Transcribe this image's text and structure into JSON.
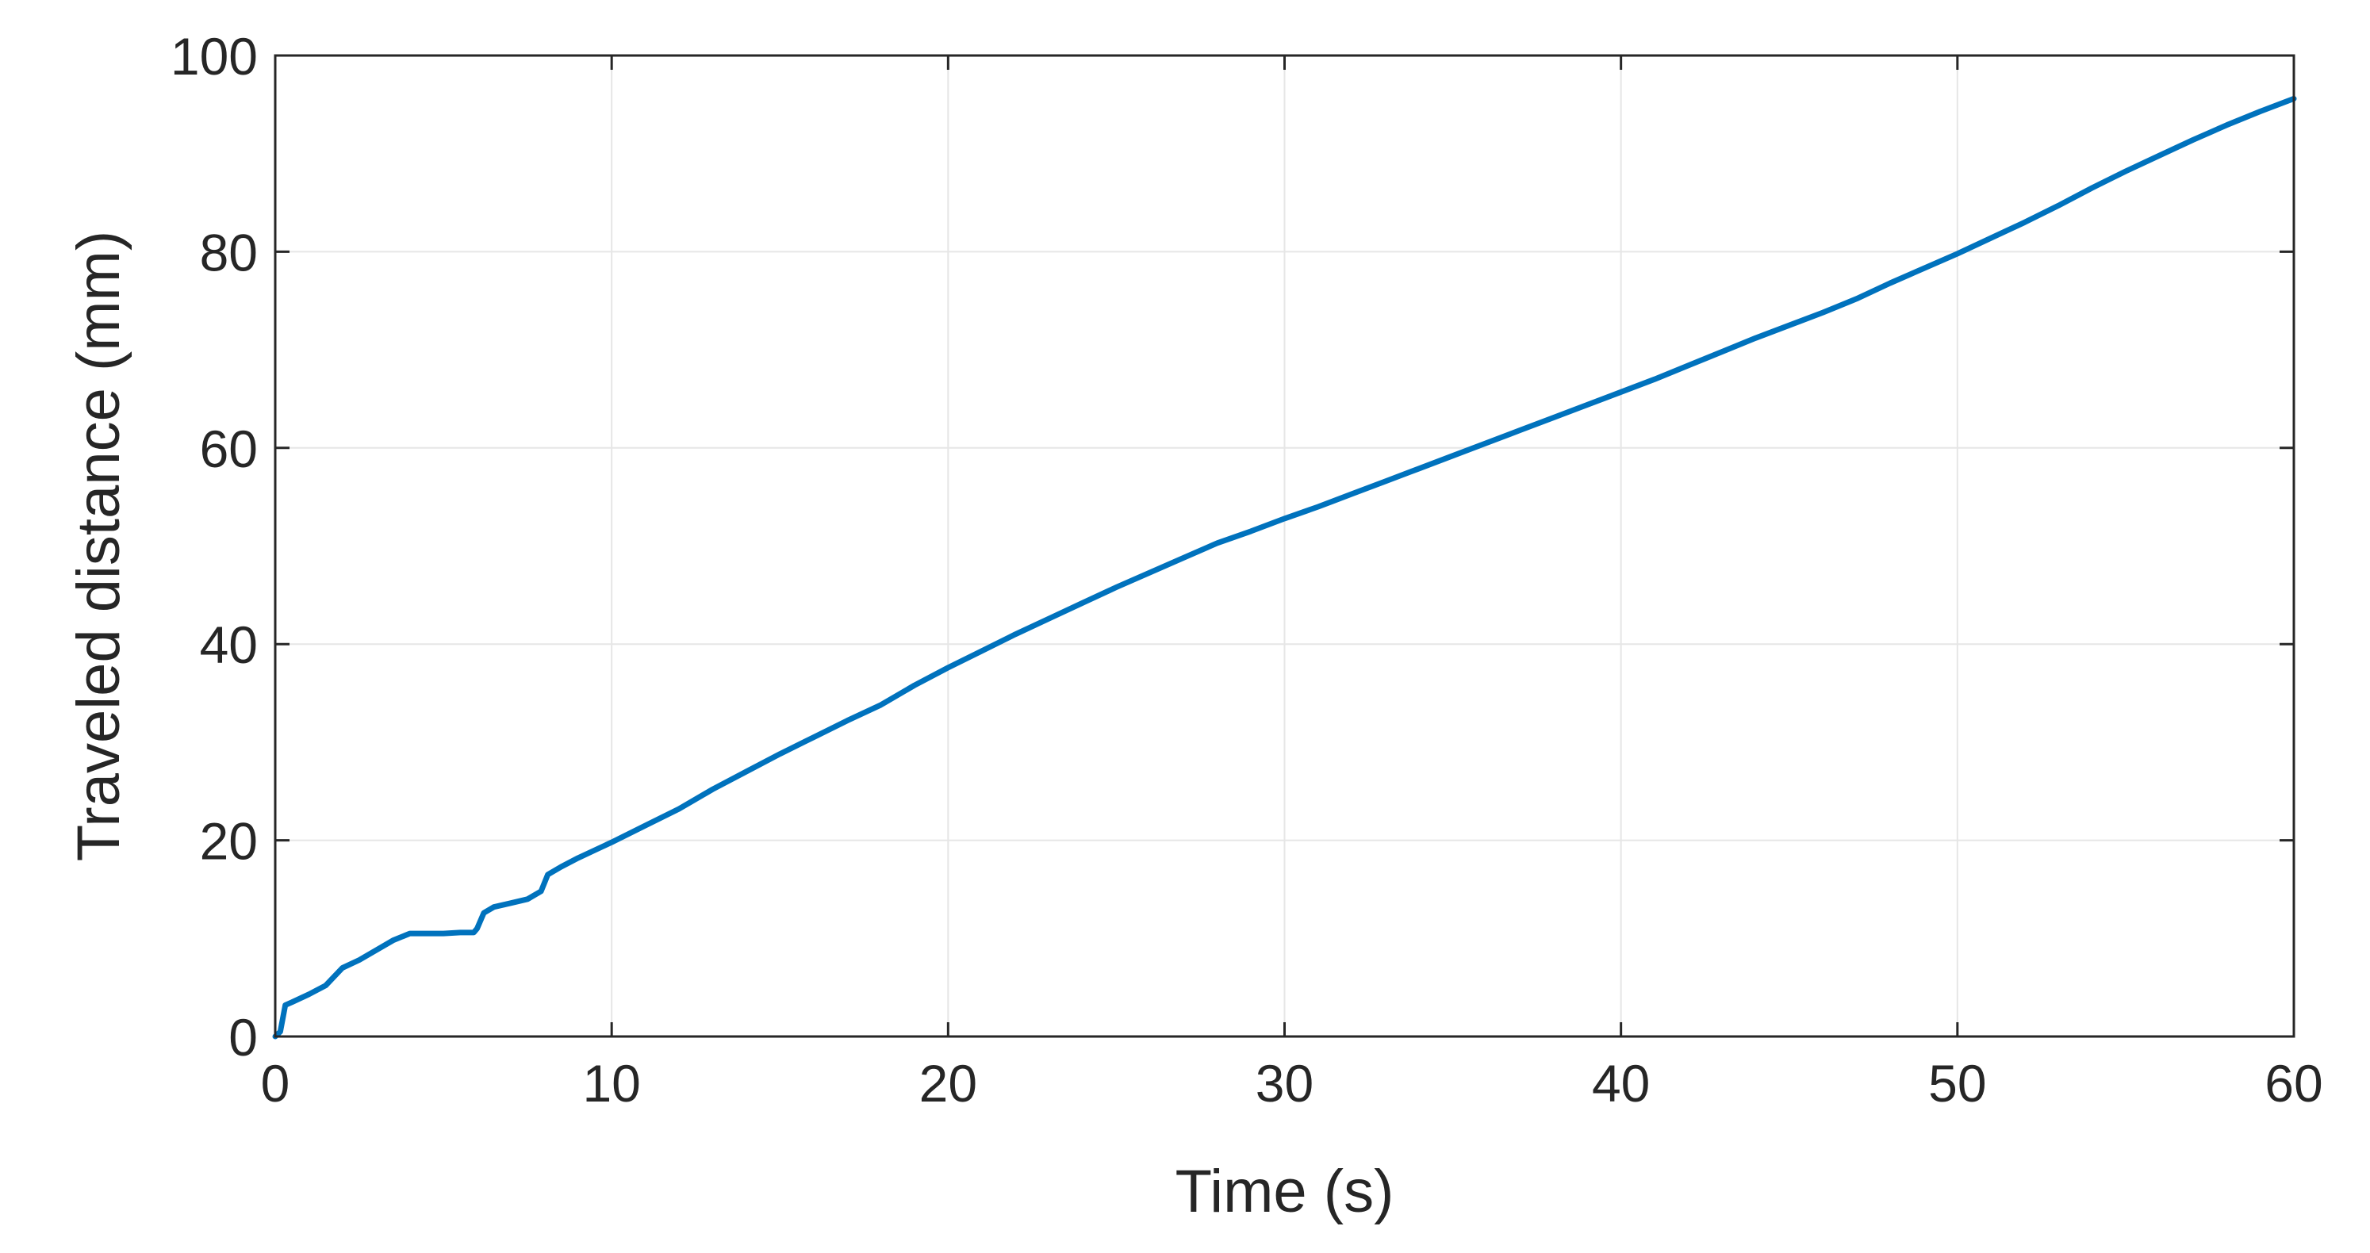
{
  "chart_data": {
    "type": "line",
    "title": "",
    "xlabel": "Time (s)",
    "ylabel": "Traveled distance (mm)",
    "xlim": [
      0,
      60
    ],
    "ylim": [
      0,
      100
    ],
    "xticks": [
      0,
      10,
      20,
      30,
      40,
      50,
      60
    ],
    "yticks": [
      0,
      20,
      40,
      60,
      80,
      100
    ],
    "grid": true,
    "legend": "none",
    "colors": {
      "series": "#0072bd",
      "axis": "#262626",
      "grid": "#e6e6e6"
    },
    "series": [
      {
        "color": "#0072bd",
        "x": [
          0,
          0.15,
          0.3,
          0.5,
          1.0,
          1.5,
          2.0,
          2.5,
          3.0,
          3.5,
          4.0,
          4.5,
          5.0,
          5.5,
          5.9,
          6.0,
          6.2,
          6.5,
          7.0,
          7.5,
          7.9,
          8.1,
          8.5,
          9.0,
          9.5,
          10,
          11,
          12,
          13,
          14,
          15,
          16,
          17,
          18,
          19,
          20,
          21,
          22,
          23,
          24,
          25,
          26,
          27,
          28,
          29,
          30,
          31,
          32,
          33,
          34,
          35,
          36,
          37,
          38,
          39,
          40,
          41,
          42,
          43,
          44,
          45,
          46,
          47,
          48,
          49,
          50,
          51,
          52,
          53,
          54,
          55,
          56,
          57,
          58,
          59,
          60
        ],
        "y": [
          0,
          0.5,
          3.2,
          3.5,
          4.3,
          5.2,
          7.0,
          7.8,
          8.8,
          9.8,
          10.5,
          10.5,
          10.5,
          10.6,
          10.6,
          11.0,
          12.6,
          13.2,
          13.6,
          14.0,
          14.8,
          16.5,
          17.3,
          18.2,
          19.0,
          19.8,
          21.5,
          23.2,
          25.2,
          27.0,
          28.8,
          30.5,
          32.2,
          33.8,
          35.8,
          37.6,
          39.3,
          41.0,
          42.6,
          44.2,
          45.8,
          47.3,
          48.8,
          50.3,
          51.5,
          52.8,
          54.0,
          55.3,
          56.6,
          57.9,
          59.2,
          60.5,
          61.8,
          63.1,
          64.4,
          65.7,
          67.0,
          68.4,
          69.8,
          71.2,
          72.5,
          73.8,
          75.2,
          76.8,
          78.3,
          79.8,
          81.4,
          83.0,
          84.7,
          86.5,
          88.2,
          89.8,
          91.4,
          92.9,
          94.3,
          95.6
        ]
      }
    ]
  }
}
